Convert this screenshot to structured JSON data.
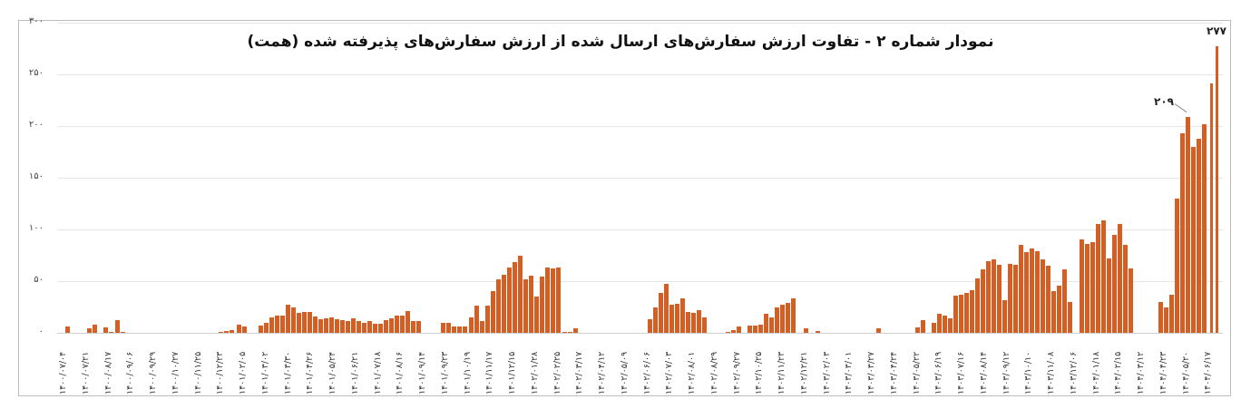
{
  "chart_data": {
    "type": "bar",
    "title": "نمودار شماره ۲ - تفاوت ارزش سفارش‌های ارسال شده از ارزش سفارش‌های پذیرفته شده (همت)",
    "xlabel": "",
    "ylabel": "",
    "ylim": [
      0,
      300
    ],
    "y_ticks": [
      "۰",
      "۵۰",
      "۱۰۰",
      "۱۵۰",
      "۲۰۰",
      "۲۵۰",
      "۳۰۰"
    ],
    "grid": true,
    "bar_color": "#d35f24",
    "x_tick_labels": [
      "۱۴۰۰/۰۷/۰۴",
      "۱۴۰۰/۰۷/۲۱",
      "۱۴۰۰/۰۸/۱۷",
      "۱۴۰۰/۰۹/۰۶",
      "۱۴۰۰/۰۹/۲۹",
      "۱۴۰۰/۱۰/۲۷",
      "۱۴۰۰/۱۱/۲۵",
      "۱۴۰۰/۱۲/۲۳",
      "۱۴۰۱/۰۲/۰۵",
      "۱۴۰۱/۰۳/۰۲",
      "۱۴۰۱/۰۳/۳۰",
      "۱۴۰۱/۰۴/۲۶",
      "۱۴۰۱/۰۵/۲۴",
      "۱۴۰۱/۰۶/۲۱",
      "۱۴۰۱/۰۷/۱۸",
      "۱۴۰۱/۰۸/۱۶",
      "۱۴۰۱/۰۹/۱۴",
      "۱۴۰۱/۰۹/۲۳",
      "۱۴۰۱/۱۰/۱۹",
      "۱۴۰۱/۱۱/۱۷",
      "۱۴۰۱/۱۲/۱۵",
      "۱۴۰۲/۰۱/۲۸",
      "۱۴۰۲/۰۲/۲۵",
      "۱۴۰۲/۰۳/۱۷",
      "۱۴۰۲/۰۴/۱۲",
      "۱۴۰۲/۰۵/۰۹",
      "۱۴۰۲/۰۶/۰۶",
      "۱۴۰۲/۰۷/۰۳",
      "۱۴۰۲/۰۸/۰۱",
      "۱۴۰۲/۰۸/۲۹",
      "۱۴۰۲/۰۹/۲۷",
      "۱۴۰۲/۱۰/۲۵",
      "۱۴۰۲/۱۱/۲۳",
      "۱۴۰۲/۱۲/۲۱",
      "۱۴۰۳/۰۲/۰۳",
      "۱۴۰۳/۰۳/۰۱",
      "۱۴۰۳/۰۳/۲۷",
      "۱۴۰۳/۰۴/۲۴",
      "۱۴۰۳/۰۵/۲۲",
      "۱۴۰۳/۰۶/۱۹",
      "۱۴۰۳/۰۷/۱۶",
      "۱۴۰۳/۰۸/۱۴",
      "۱۴۰۳/۰۹/۱۲",
      "۱۴۰۳/۱۰/۱۰",
      "۱۴۰۳/۱۱/۰۸",
      "۱۴۰۳/۱۲/۰۶",
      "۱۴۰۴/۰۱/۱۸",
      "۱۴۰۴/۰۲/۱۵",
      "۱۴۰۴/۰۳/۱۲",
      "۱۴۰۴/۰۴/۲۳",
      "۱۴۰۴/۰۵/۲۰",
      "۱۴۰۴/۰۶/۱۷"
    ],
    "annotations": [
      {
        "label": "۲۰۹",
        "value": 209
      },
      {
        "label": "۲۷۷",
        "value": 277
      }
    ],
    "bars": [
      [
        72,
        6
      ],
      [
        96,
        4
      ],
      [
        102,
        8
      ],
      [
        114,
        5
      ],
      [
        120,
        1
      ],
      [
        127,
        12
      ],
      [
        133,
        0.5
      ],
      [
        241,
        0.5
      ],
      [
        247,
        1.5
      ],
      [
        253,
        2.5
      ],
      [
        261,
        8
      ],
      [
        267,
        6
      ],
      [
        285,
        7
      ],
      [
        291,
        10
      ],
      [
        297,
        15
      ],
      [
        303,
        17
      ],
      [
        309,
        17
      ],
      [
        315,
        27
      ],
      [
        321,
        25
      ],
      [
        327,
        19
      ],
      [
        333,
        20
      ],
      [
        339,
        20
      ],
      [
        345,
        16
      ],
      [
        351,
        13
      ],
      [
        357,
        14
      ],
      [
        363,
        15
      ],
      [
        369,
        13
      ],
      [
        375,
        12
      ],
      [
        381,
        11
      ],
      [
        387,
        14
      ],
      [
        393,
        11
      ],
      [
        399,
        10
      ],
      [
        405,
        11
      ],
      [
        411,
        9
      ],
      [
        417,
        9
      ],
      [
        423,
        12
      ],
      [
        429,
        14
      ],
      [
        435,
        17
      ],
      [
        441,
        17
      ],
      [
        447,
        21
      ],
      [
        453,
        11
      ],
      [
        459,
        11
      ],
      [
        486,
        10
      ],
      [
        492,
        10
      ],
      [
        498,
        6
      ],
      [
        504,
        6
      ],
      [
        510,
        6
      ],
      [
        517,
        15
      ],
      [
        523,
        26
      ],
      [
        529,
        11
      ],
      [
        535,
        26
      ],
      [
        541,
        40
      ],
      [
        547,
        52
      ],
      [
        553,
        56
      ],
      [
        559,
        63
      ],
      [
        565,
        68
      ],
      [
        571,
        75
      ],
      [
        577,
        52
      ],
      [
        583,
        55
      ],
      [
        589,
        35
      ],
      [
        595,
        54
      ],
      [
        601,
        63
      ],
      [
        607,
        62
      ],
      [
        613,
        63
      ],
      [
        620,
        1
      ],
      [
        626,
        1
      ],
      [
        632,
        4
      ],
      [
        714,
        13
      ],
      [
        720,
        25
      ],
      [
        726,
        39
      ],
      [
        732,
        47
      ],
      [
        738,
        27
      ],
      [
        744,
        28
      ],
      [
        750,
        33
      ],
      [
        756,
        20
      ],
      [
        762,
        19
      ],
      [
        768,
        22
      ],
      [
        774,
        15
      ],
      [
        800,
        0.5
      ],
      [
        806,
        3
      ],
      [
        812,
        6
      ],
      [
        824,
        7
      ],
      [
        830,
        7
      ],
      [
        836,
        8
      ],
      [
        842,
        18
      ],
      [
        848,
        15
      ],
      [
        854,
        25
      ],
      [
        860,
        27
      ],
      [
        866,
        29
      ],
      [
        872,
        33
      ],
      [
        886,
        4
      ],
      [
        899,
        1.5
      ],
      [
        966,
        4
      ],
      [
        1009,
        5
      ],
      [
        1015,
        12
      ],
      [
        1027,
        10
      ],
      [
        1033,
        18
      ],
      [
        1039,
        17
      ],
      [
        1045,
        14
      ],
      [
        1051,
        36
      ],
      [
        1057,
        37
      ],
      [
        1063,
        39
      ],
      [
        1069,
        41
      ],
      [
        1075,
        53
      ],
      [
        1081,
        61
      ],
      [
        1087,
        69
      ],
      [
        1093,
        71
      ],
      [
        1099,
        66
      ],
      [
        1105,
        32
      ],
      [
        1111,
        67
      ],
      [
        1117,
        66
      ],
      [
        1123,
        85
      ],
      [
        1129,
        78
      ],
      [
        1135,
        82
      ],
      [
        1141,
        79
      ],
      [
        1147,
        71
      ],
      [
        1153,
        65
      ],
      [
        1159,
        40
      ],
      [
        1165,
        46
      ],
      [
        1171,
        61
      ],
      [
        1177,
        30
      ],
      [
        1190,
        90
      ],
      [
        1196,
        86
      ],
      [
        1202,
        88
      ],
      [
        1208,
        105
      ],
      [
        1214,
        109
      ],
      [
        1220,
        72
      ],
      [
        1226,
        95
      ],
      [
        1232,
        105
      ],
      [
        1238,
        85
      ],
      [
        1244,
        62
      ],
      [
        1277,
        30
      ],
      [
        1283,
        25
      ],
      [
        1289,
        37
      ],
      [
        1295,
        130
      ],
      [
        1301,
        193
      ],
      [
        1307,
        209
      ],
      [
        1313,
        180
      ],
      [
        1319,
        188
      ],
      [
        1325,
        202
      ],
      [
        1334,
        241
      ],
      [
        1340,
        277
      ]
    ]
  }
}
